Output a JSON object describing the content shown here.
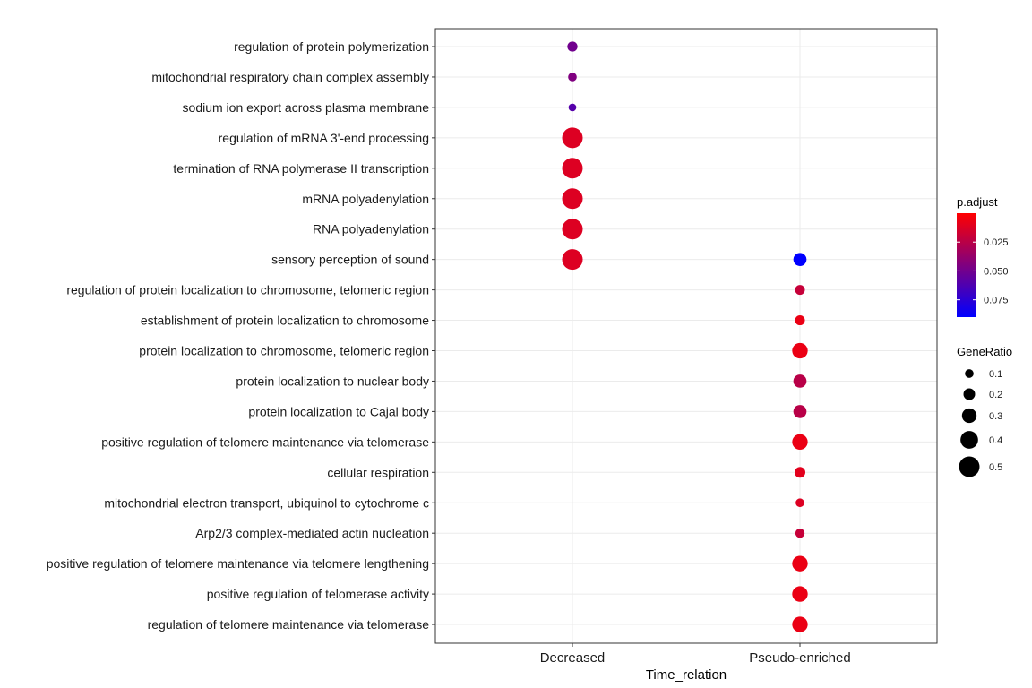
{
  "chart_data": {
    "type": "scatter",
    "subtype": "dot-plot",
    "xlabel": "Time_relation",
    "ylabel": "",
    "title": "",
    "grid": true,
    "x_categories": [
      "Decreased",
      "Pseudo-enriched"
    ],
    "y_categories": [
      "regulation of protein polymerization",
      "mitochondrial respiratory chain complex assembly",
      "sodium ion export across plasma membrane",
      "regulation of mRNA 3'-end processing",
      "termination of RNA polymerase II transcription",
      "mRNA polyadenylation",
      "RNA polyadenylation",
      "sensory perception of sound",
      "regulation of protein localization to chromosome, telomeric region",
      "establishment of protein localization to chromosome",
      "protein localization to chromosome, telomeric region",
      "protein localization to nuclear body",
      "protein localization to Cajal body",
      "positive regulation of telomere maintenance via telomerase",
      "cellular respiration",
      "mitochondrial electron transport, ubiquinol to cytochrome c",
      "Arp2/3 complex-mediated actin nucleation",
      "positive regulation of telomere maintenance via telomere lengthening",
      "positive regulation of telomerase activity",
      "regulation of telomere maintenance via telomerase"
    ],
    "points": [
      {
        "x": "Decreased",
        "y": "regulation of protein polymerization",
        "gene_ratio": 0.15,
        "p_adjust": 0.05
      },
      {
        "x": "Decreased",
        "y": "mitochondrial respiratory chain complex assembly",
        "gene_ratio": 0.1,
        "p_adjust": 0.045
      },
      {
        "x": "Decreased",
        "y": "sodium ion export across plasma membrane",
        "gene_ratio": 0.07,
        "p_adjust": 0.06
      },
      {
        "x": "Decreased",
        "y": "regulation of mRNA 3'-end processing",
        "gene_ratio": 0.5,
        "p_adjust": 0.012
      },
      {
        "x": "Decreased",
        "y": "termination of RNA polymerase II transcription",
        "gene_ratio": 0.5,
        "p_adjust": 0.012
      },
      {
        "x": "Decreased",
        "y": "mRNA polyadenylation",
        "gene_ratio": 0.5,
        "p_adjust": 0.012
      },
      {
        "x": "Decreased",
        "y": "RNA polyadenylation",
        "gene_ratio": 0.5,
        "p_adjust": 0.012
      },
      {
        "x": "Decreased",
        "y": "sensory perception of sound",
        "gene_ratio": 0.5,
        "p_adjust": 0.012
      },
      {
        "x": "Pseudo-enriched",
        "y": "sensory perception of sound",
        "gene_ratio": 0.25,
        "p_adjust": 0.09
      },
      {
        "x": "Pseudo-enriched",
        "y": "regulation of protein localization to chromosome, telomeric region",
        "gene_ratio": 0.14,
        "p_adjust": 0.02
      },
      {
        "x": "Pseudo-enriched",
        "y": "establishment of protein localization to chromosome",
        "gene_ratio": 0.14,
        "p_adjust": 0.007
      },
      {
        "x": "Pseudo-enriched",
        "y": "protein localization to chromosome, telomeric region",
        "gene_ratio": 0.33,
        "p_adjust": 0.007
      },
      {
        "x": "Pseudo-enriched",
        "y": "protein localization to nuclear body",
        "gene_ratio": 0.25,
        "p_adjust": 0.025
      },
      {
        "x": "Pseudo-enriched",
        "y": "protein localization to Cajal body",
        "gene_ratio": 0.25,
        "p_adjust": 0.025
      },
      {
        "x": "Pseudo-enriched",
        "y": "positive regulation of telomere maintenance via telomerase",
        "gene_ratio": 0.33,
        "p_adjust": 0.007
      },
      {
        "x": "Pseudo-enriched",
        "y": "cellular respiration",
        "gene_ratio": 0.17,
        "p_adjust": 0.01
      },
      {
        "x": "Pseudo-enriched",
        "y": "mitochondrial electron transport, ubiquinol to cytochrome c",
        "gene_ratio": 0.1,
        "p_adjust": 0.012
      },
      {
        "x": "Pseudo-enriched",
        "y": "Arp2/3 complex-mediated actin nucleation",
        "gene_ratio": 0.12,
        "p_adjust": 0.02
      },
      {
        "x": "Pseudo-enriched",
        "y": "positive regulation of telomere maintenance via telomere lengthening",
        "gene_ratio": 0.33,
        "p_adjust": 0.007
      },
      {
        "x": "Pseudo-enriched",
        "y": "positive regulation of telomerase activity",
        "gene_ratio": 0.33,
        "p_adjust": 0.007
      },
      {
        "x": "Pseudo-enriched",
        "y": "regulation of telomere maintenance via telomerase",
        "gene_ratio": 0.33,
        "p_adjust": 0.007
      }
    ],
    "legend_color": {
      "title": "p.adjust",
      "range": [
        0.0,
        0.09
      ],
      "low_color": "#ff0000",
      "high_color": "#0000ff",
      "ticks": [
        0.025,
        0.05,
        0.075
      ],
      "tick_labels": [
        "0.025",
        "0.050",
        "0.075"
      ]
    },
    "legend_size": {
      "title": "GeneRatio",
      "values": [
        0.1,
        0.2,
        0.3,
        0.4,
        0.5
      ],
      "labels": [
        "0.1",
        "0.2",
        "0.3",
        "0.4",
        "0.5"
      ]
    },
    "legend_position": "right"
  }
}
